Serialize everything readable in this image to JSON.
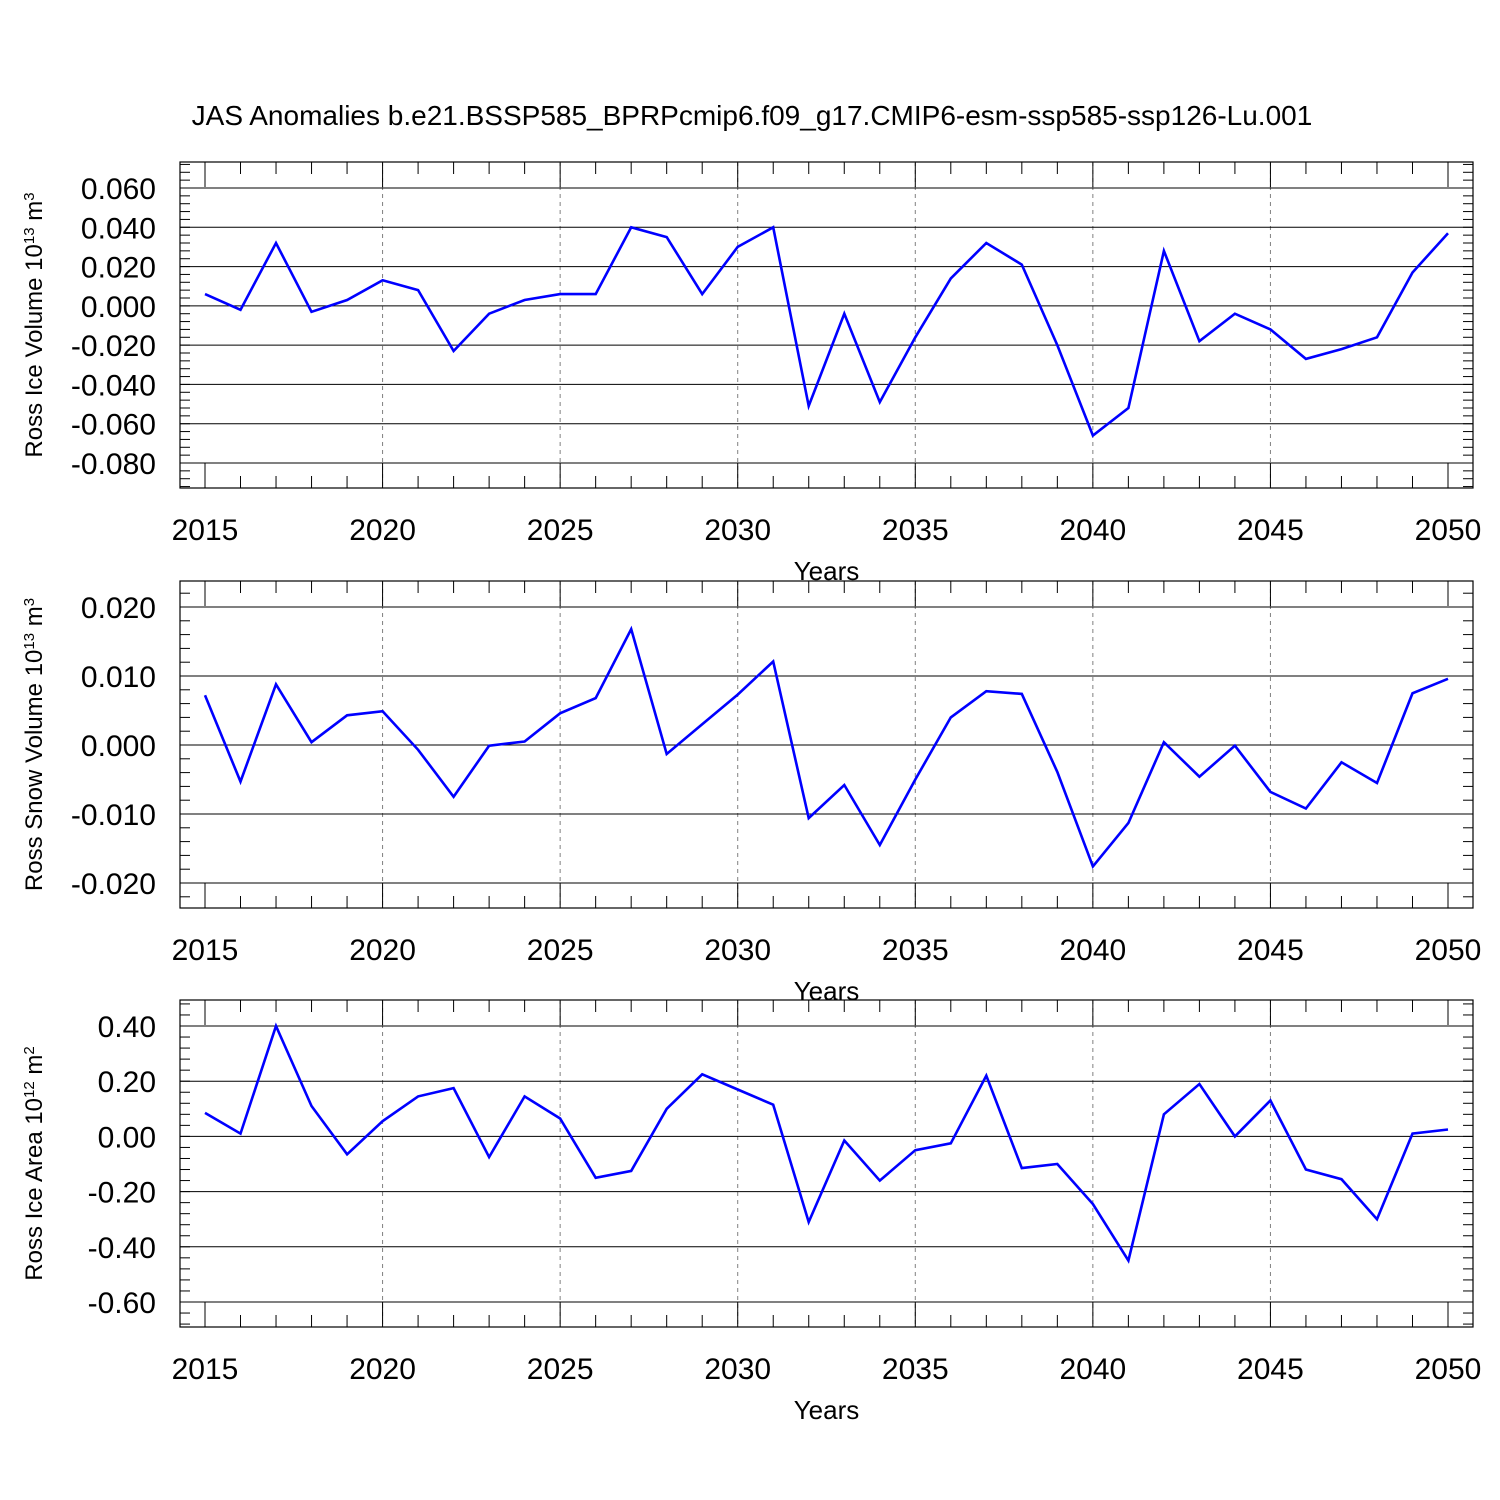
{
  "title": "JAS Anomalies b.e21.BSSP585_BPRPcmip6.f09_g17.CMIP6-esm-ssp585-ssp126-Lu.001",
  "colors": {
    "line": "#0000ff",
    "axis": "#000000",
    "grid": "#808080"
  },
  "chart_data": [
    {
      "type": "line",
      "ylabel": "Ross Ice Volume 10",
      "ylabel_exp": "13",
      "ylabel_unit": " m",
      "ylabel_unit_exp": "3",
      "xlabel": "Years",
      "xlim": [
        2015,
        2050
      ],
      "ylim": [
        -0.08,
        0.073
      ],
      "yticks": [
        -0.08,
        -0.06,
        -0.04,
        -0.02,
        0.0,
        0.02,
        0.04,
        0.06
      ],
      "ytick_labels": [
        "-0.080",
        "-0.060",
        "-0.040",
        "-0.020",
        "0.000",
        "0.020",
        "0.040",
        "0.060"
      ],
      "xticks": [
        2015,
        2020,
        2025,
        2030,
        2035,
        2040,
        2045,
        2050
      ],
      "xtick_labels": [
        "2015",
        "2020",
        "2025",
        "2030",
        "2035",
        "2040",
        "2045",
        "2050"
      ],
      "grid": "vertical dashed at major x ticks",
      "x": [
        2015,
        2016,
        2017,
        2018,
        2019,
        2020,
        2021,
        2022,
        2023,
        2024,
        2025,
        2026,
        2027,
        2028,
        2029,
        2030,
        2031,
        2032,
        2033,
        2034,
        2035,
        2036,
        2037,
        2038,
        2039,
        2040,
        2041,
        2042,
        2043,
        2044,
        2045,
        2046,
        2047,
        2048,
        2049,
        2050
      ],
      "values": [
        0.006,
        -0.002,
        0.032,
        -0.003,
        0.003,
        0.013,
        0.008,
        -0.023,
        -0.004,
        0.003,
        0.006,
        0.006,
        0.04,
        0.035,
        0.006,
        0.03,
        0.04,
        -0.051,
        -0.004,
        -0.049,
        -0.016,
        0.014,
        0.032,
        0.021,
        -0.02,
        -0.066,
        -0.052,
        0.028,
        -0.018,
        -0.004,
        -0.012,
        -0.027,
        -0.022,
        -0.016,
        0.017,
        0.037
      ]
    },
    {
      "type": "line",
      "ylabel": "Ross Snow Volume 10",
      "ylabel_exp": "13",
      "ylabel_unit": " m",
      "ylabel_unit_exp": "3",
      "xlabel": "Years",
      "xlim": [
        2015,
        2050
      ],
      "ylim": [
        -0.02,
        0.0237
      ],
      "yticks": [
        -0.02,
        -0.01,
        0.0,
        0.01,
        0.02
      ],
      "ytick_labels": [
        "-0.020",
        "-0.010",
        "0.000",
        "0.010",
        "0.020"
      ],
      "xticks": [
        2015,
        2020,
        2025,
        2030,
        2035,
        2040,
        2045,
        2050
      ],
      "xtick_labels": [
        "2015",
        "2020",
        "2025",
        "2030",
        "2035",
        "2040",
        "2045",
        "2050"
      ],
      "grid": "vertical dashed at major x ticks",
      "x": [
        2015,
        2016,
        2017,
        2018,
        2019,
        2020,
        2021,
        2022,
        2023,
        2024,
        2025,
        2026,
        2027,
        2028,
        2029,
        2030,
        2031,
        2032,
        2033,
        2034,
        2035,
        2036,
        2037,
        2038,
        2039,
        2040,
        2041,
        2042,
        2043,
        2044,
        2045,
        2046,
        2047,
        2048,
        2049,
        2050
      ],
      "values": [
        0.0072,
        -0.0053,
        0.0088,
        0.0004,
        0.0043,
        0.0049,
        -0.0007,
        -0.0075,
        -0.0001,
        0.0005,
        0.0046,
        0.0068,
        0.0168,
        -0.0013,
        0.003,
        0.0073,
        0.0121,
        -0.0106,
        -0.0058,
        -0.0145,
        -0.005,
        0.004,
        0.0078,
        0.0074,
        -0.0039,
        -0.0176,
        -0.0113,
        0.0004,
        -0.0046,
        -0.0001,
        -0.0068,
        -0.0092,
        -0.0025,
        -0.0055,
        0.0075,
        0.0096
      ]
    },
    {
      "type": "line",
      "ylabel": "Ross Ice Area 10",
      "ylabel_exp": "12",
      "ylabel_unit": " m",
      "ylabel_unit_exp": "2",
      "xlabel": "Years",
      "xlim": [
        2015,
        2050
      ],
      "ylim": [
        -0.6,
        0.5
      ],
      "yticks": [
        -0.6,
        -0.4,
        -0.2,
        0.0,
        0.2,
        0.4
      ],
      "ytick_labels": [
        "-0.60",
        "-0.40",
        "-0.20",
        "0.00",
        "0.20",
        "0.40"
      ],
      "xticks": [
        2015,
        2020,
        2025,
        2030,
        2035,
        2040,
        2045,
        2050
      ],
      "xtick_labels": [
        "2015",
        "2020",
        "2025",
        "2030",
        "2035",
        "2040",
        "2045",
        "2050"
      ],
      "grid": "vertical dashed at major x ticks",
      "x": [
        2015,
        2016,
        2017,
        2018,
        2019,
        2020,
        2021,
        2022,
        2023,
        2024,
        2025,
        2026,
        2027,
        2028,
        2029,
        2030,
        2031,
        2032,
        2033,
        2034,
        2035,
        2036,
        2037,
        2038,
        2039,
        2040,
        2041,
        2042,
        2043,
        2044,
        2045,
        2046,
        2047,
        2048,
        2049,
        2050
      ],
      "values": [
        0.085,
        0.01,
        0.4,
        0.11,
        -0.065,
        0.055,
        0.145,
        0.175,
        -0.075,
        0.145,
        0.065,
        -0.15,
        -0.125,
        0.1,
        0.225,
        0.17,
        0.115,
        -0.31,
        -0.015,
        -0.16,
        -0.05,
        -0.025,
        0.22,
        -0.115,
        -0.1,
        -0.245,
        -0.45,
        0.08,
        0.19,
        0.0,
        0.13,
        -0.12,
        -0.155,
        -0.3,
        0.01,
        0.025
      ]
    }
  ]
}
